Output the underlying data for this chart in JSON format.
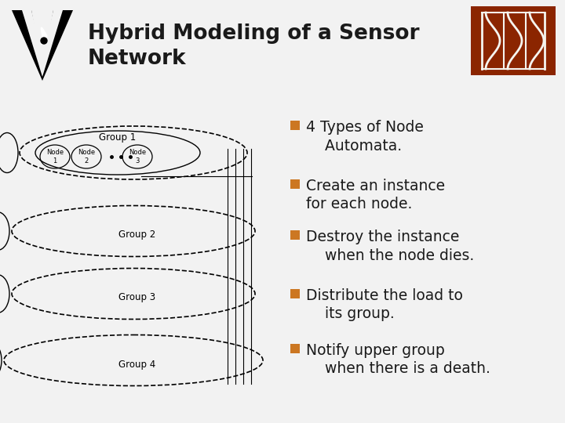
{
  "bg_color": "#f2f2f2",
  "title": "Hybrid Modeling of a Sensor\nNetwork",
  "title_fontsize": 19,
  "title_color": "#1a1a1a",
  "bullet_color": "#cc7722",
  "bullet_fontsize": 13.5,
  "bullet_items": [
    [
      "4 Types of Node\n    Automata.",
      true
    ],
    [
      "Create an instance\nfor each node.",
      true
    ],
    [
      "Destroy the instance\n    when the node dies.",
      true
    ],
    [
      "Distribute the load to\n    its group.",
      true
    ],
    [
      "Notify upper group\n    when there is a death.",
      true
    ]
  ],
  "isis_bg": "#8b2500",
  "isis_bar_color": "#f5f5f0",
  "white": "#ffffff"
}
